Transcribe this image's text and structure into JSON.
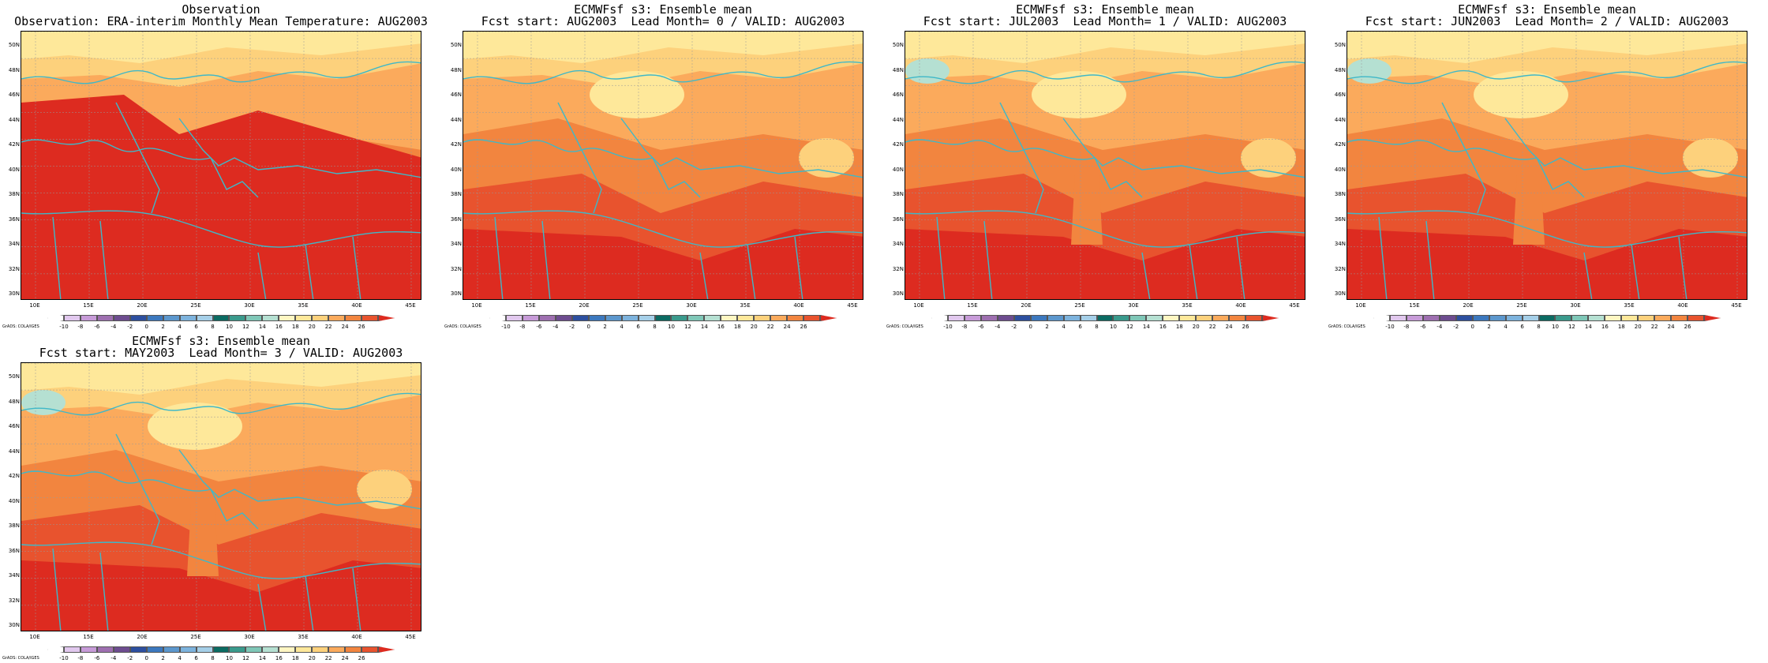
{
  "panels": [
    {
      "title1": "Observation",
      "title2": "Observation: ERA-interim Monthly Mean Temperature: AUG2003"
    },
    {
      "title1": "ECMWFsf s3: Ensemble mean",
      "title2": "Fcst start: AUG2003  Lead Month= 0 / VALID: AUG2003"
    },
    {
      "title1": "ECMWFsf s3: Ensemble mean",
      "title2": "Fcst start: JUL2003  Lead Month= 1 / VALID: AUG2003"
    },
    {
      "title1": "ECMWFsf s3: Ensemble mean",
      "title2": "Fcst start: JUN2003  Lead Month= 2 / VALID: AUG2003"
    },
    {
      "title1": "ECMWFsf s3: Ensemble mean",
      "title2": "Fcst start: MAY2003  Lead Month= 3 / VALID: AUG2003"
    }
  ],
  "lat_labels": [
    "50N",
    "48N",
    "46N",
    "44N",
    "42N",
    "40N",
    "38N",
    "36N",
    "34N",
    "32N",
    "30N"
  ],
  "lon_labels": [
    "10E",
    "15E",
    "20E",
    "25E",
    "30E",
    "35E",
    "40E",
    "45E"
  ],
  "colorbar_labels": [
    "-10",
    "-8",
    "-6",
    "-4",
    "-2",
    "0",
    "2",
    "4",
    "6",
    "8",
    "10",
    "12",
    "14",
    "16",
    "18",
    "20",
    "22",
    "24",
    "26"
  ],
  "colorbar_colors": [
    "#ffffff",
    "#e1c8ee",
    "#c79bd8",
    "#9e6fb0",
    "#6d4c8f",
    "#2d4f9f",
    "#3c78be",
    "#5c97cd",
    "#7db3dd",
    "#a5cfe8",
    "#0b6b62",
    "#3a9a8c",
    "#7fc7b7",
    "#b5e0d2",
    "#fff6c2",
    "#fee89a",
    "#fdd17c",
    "#fbaa5c",
    "#f2853f",
    "#e8532e",
    "#dd2b20"
  ],
  "grads_credit": "GrADS: COLA/IGES"
}
